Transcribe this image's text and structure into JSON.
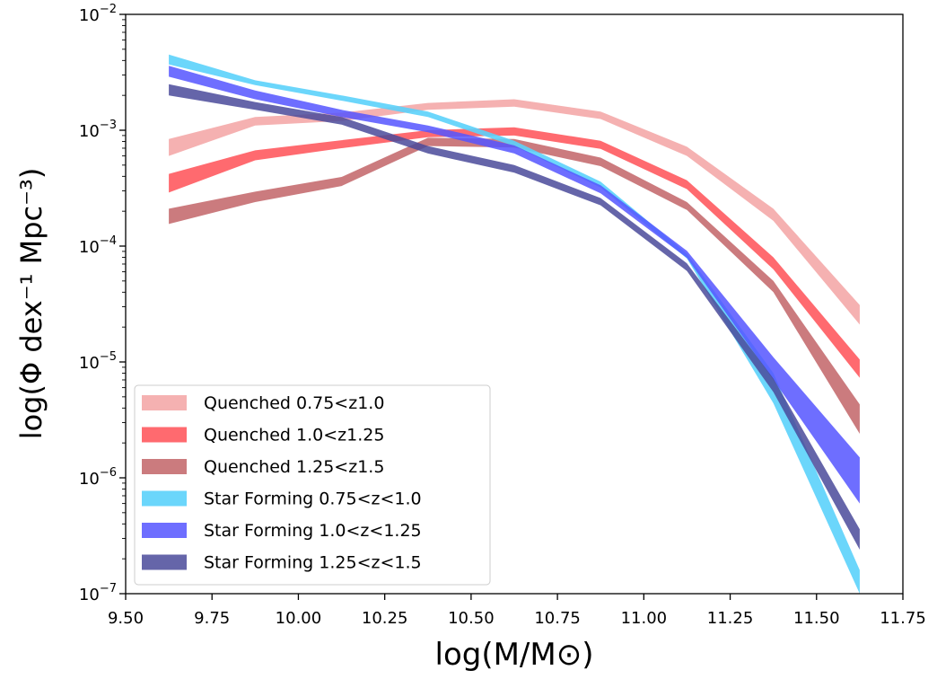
{
  "chart_data": {
    "type": "area",
    "title": "",
    "xlabel": "log(M/M⊙)",
    "ylabel": "log(Φ dex⁻¹ Mpc⁻³)",
    "xlim": [
      9.5,
      11.75
    ],
    "ylim": [
      1e-07,
      0.01
    ],
    "yscale": "log",
    "grid": false,
    "legend_position": "lower-left",
    "x_ticks": [
      "9.50",
      "9.75",
      "10.00",
      "10.25",
      "10.50",
      "10.75",
      "11.00",
      "11.25",
      "11.50",
      "11.75"
    ],
    "y_ticks": [
      {
        "base": "10",
        "exp": "−7"
      },
      {
        "base": "10",
        "exp": "−6"
      },
      {
        "base": "10",
        "exp": "−5"
      },
      {
        "base": "10",
        "exp": "−4"
      },
      {
        "base": "10",
        "exp": "−3"
      },
      {
        "base": "10",
        "exp": "−2"
      }
    ],
    "x": [
      9.625,
      9.875,
      10.125,
      10.375,
      10.625,
      10.875,
      11.125,
      11.375,
      11.625
    ],
    "series": [
      {
        "name": "Quenched 0.75<z1.0",
        "color": "#f4a9a8",
        "opacity": 0.9,
        "lower": [
          0.0006,
          0.0011,
          0.0012,
          0.0015,
          0.0016,
          0.00125,
          0.0006,
          0.000165,
          2.1e-05
        ],
        "upper": [
          0.00084,
          0.0013,
          0.00142,
          0.00172,
          0.00185,
          0.00145,
          0.00072,
          0.00021,
          3.1e-05
        ]
      },
      {
        "name": "Quenched 1.0<z1.25",
        "color": "#ff5a5f",
        "opacity": 0.9,
        "lower": [
          0.00029,
          0.00055,
          0.0007,
          0.00087,
          0.0009,
          0.00069,
          0.00031,
          6.3e-05,
          7.3e-06
        ],
        "upper": [
          0.00042,
          0.00067,
          0.00082,
          0.001,
          0.00106,
          0.00081,
          0.00037,
          8e-05,
          1.05e-05
        ]
      },
      {
        "name": "Quenched 1.25<z1.5",
        "color": "#c4696c",
        "opacity": 0.88,
        "lower": [
          0.000155,
          0.00024,
          0.00033,
          0.00073,
          0.00071,
          0.00049,
          0.000205,
          4e-05,
          2.4e-06
        ],
        "upper": [
          0.00021,
          0.000295,
          0.000395,
          0.00086,
          0.00084,
          0.00058,
          0.00024,
          5e-05,
          4.3e-06
        ]
      },
      {
        "name": "Star Forming 0.75<z<1.0",
        "color": "#5bd1fb",
        "opacity": 0.9,
        "lower": [
          0.0037,
          0.00245,
          0.0018,
          0.0013,
          0.00073,
          0.00032,
          7.8e-05,
          4.4e-06,
          1e-07
        ],
        "upper": [
          0.0045,
          0.0027,
          0.002,
          0.00145,
          0.00081,
          0.00036,
          8.6e-05,
          8e-06,
          1.6e-07
        ]
      },
      {
        "name": "Star Forming 1.0<z<1.25",
        "color": "#5555ff",
        "opacity": 0.85,
        "lower": [
          0.0029,
          0.00185,
          0.0013,
          0.00096,
          0.00063,
          0.000285,
          7.9e-05,
          7e-06,
          6e-07
        ],
        "upper": [
          0.0036,
          0.0022,
          0.0015,
          0.0011,
          0.00074,
          0.000335,
          9.1e-05,
          1.1e-05,
          1.5e-06
        ]
      },
      {
        "name": "Star Forming 1.25<z<1.5",
        "color": "#4a4a9a",
        "opacity": 0.85,
        "lower": [
          0.002,
          0.0015,
          0.00112,
          0.00063,
          0.00043,
          0.000225,
          6.1e-05,
          5.5e-06,
          2.4e-07
        ],
        "upper": [
          0.0025,
          0.00175,
          0.0013,
          0.00073,
          0.0005,
          0.00026,
          7.1e-05,
          7.2e-06,
          3.6e-07
        ]
      }
    ]
  }
}
